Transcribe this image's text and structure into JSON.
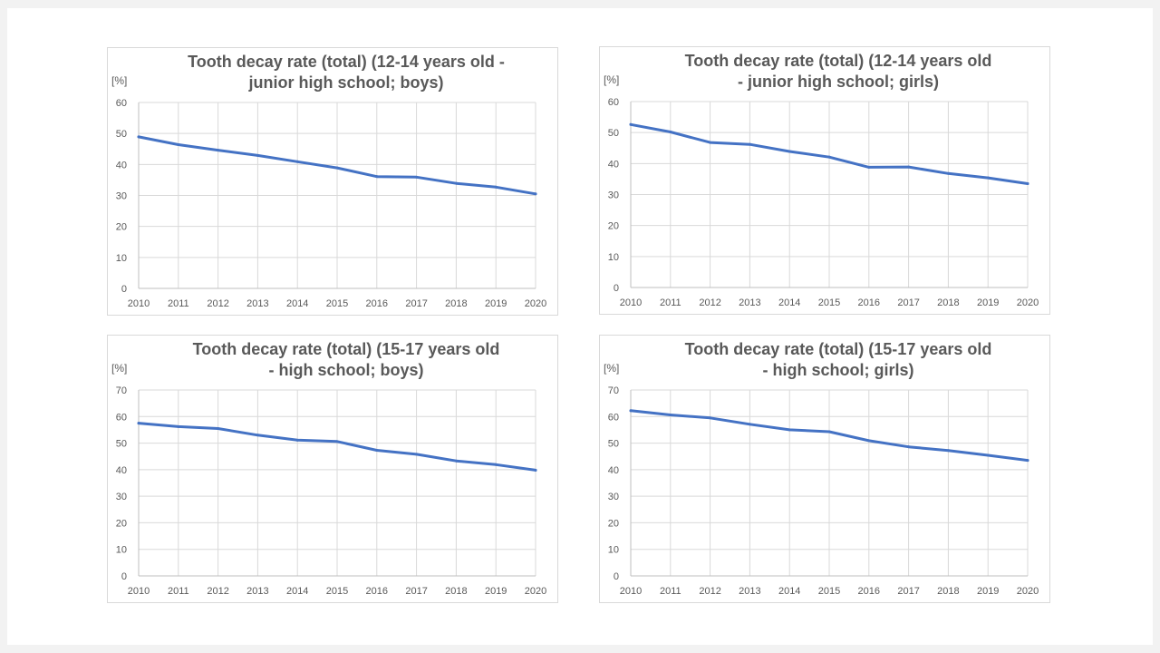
{
  "chart_data": [
    {
      "type": "line",
      "title_lines": [
        "Tooth decay rate (total) (12-14 years old -",
        "junior high school; boys)"
      ],
      "unit_label": "[%]",
      "categories": [
        "2010",
        "2011",
        "2012",
        "2013",
        "2014",
        "2015",
        "2016",
        "2017",
        "2018",
        "2019",
        "2020"
      ],
      "ylim": [
        0,
        60
      ],
      "yticks": [
        0,
        10,
        20,
        30,
        40,
        50,
        60
      ],
      "grid": true,
      "series": [
        {
          "values": [
            48.9,
            46.4,
            44.6,
            42.9,
            40.9,
            38.9,
            36.1,
            35.9,
            33.9,
            32.7,
            30.5
          ]
        }
      ]
    },
    {
      "type": "line",
      "title_lines": [
        "Tooth decay rate (total) (12-14 years old",
        "- junior high school; girls)"
      ],
      "unit_label": "[%]",
      "categories": [
        "2010",
        "2011",
        "2012",
        "2013",
        "2014",
        "2015",
        "2016",
        "2017",
        "2018",
        "2019",
        "2020"
      ],
      "ylim": [
        0,
        60
      ],
      "yticks": [
        0,
        10,
        20,
        30,
        40,
        50,
        60
      ],
      "grid": true,
      "series": [
        {
          "values": [
            52.6,
            50.2,
            46.8,
            46.2,
            43.9,
            42.1,
            38.8,
            38.9,
            36.8,
            35.4,
            33.5
          ]
        }
      ]
    },
    {
      "type": "line",
      "title_lines": [
        "Tooth decay rate (total) (15-17 years old",
        "- high school; boys)"
      ],
      "unit_label": "[%]",
      "categories": [
        "2010",
        "2011",
        "2012",
        "2013",
        "2014",
        "2015",
        "2016",
        "2017",
        "2018",
        "2019",
        "2020"
      ],
      "ylim": [
        0,
        70
      ],
      "yticks": [
        0,
        10,
        20,
        30,
        40,
        50,
        60,
        70
      ],
      "grid": true,
      "series": [
        {
          "values": [
            57.5,
            56.2,
            55.5,
            53.0,
            51.1,
            50.6,
            47.3,
            45.8,
            43.3,
            41.9,
            39.8
          ]
        }
      ]
    },
    {
      "type": "line",
      "title_lines": [
        "Tooth decay rate (total) (15-17 years old",
        "- high school; girls)"
      ],
      "unit_label": "[%]",
      "categories": [
        "2010",
        "2011",
        "2012",
        "2013",
        "2014",
        "2015",
        "2016",
        "2017",
        "2018",
        "2019",
        "2020"
      ],
      "ylim": [
        0,
        70
      ],
      "yticks": [
        0,
        10,
        20,
        30,
        40,
        50,
        60,
        70
      ],
      "grid": true,
      "series": [
        {
          "values": [
            62.2,
            60.6,
            59.5,
            57.1,
            55.0,
            54.3,
            50.9,
            48.6,
            47.2,
            45.4,
            43.5
          ]
        }
      ]
    }
  ],
  "colors": {
    "line": "#4472c4",
    "grid": "#d9d9d9",
    "axis": "#bfbfbf",
    "text": "#595959",
    "panel_border": "#d9d9d9",
    "background": "#f2f2f2"
  }
}
